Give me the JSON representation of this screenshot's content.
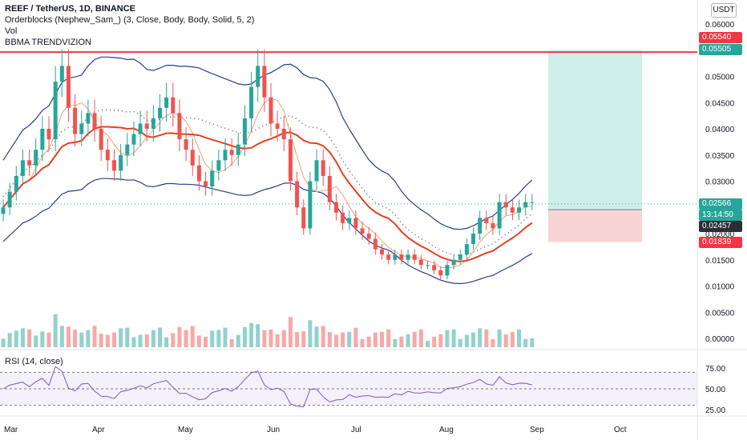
{
  "header": {
    "symbol_line": "REEF / TetherUS, 1D, BINANCE",
    "indicator_orderblocks": "Orderblocks (Nephew_Sam_) (3, Close, Body, Body, Solid, 5, 2)",
    "indicator_vol": "Vol",
    "indicator_bbma": "BBMA TRENDVIZION"
  },
  "unit_label": "USDT",
  "price_tags": {
    "resistance": "0.05540",
    "target": "0.05505",
    "current": "0.02566",
    "countdown": "13:14:50",
    "entry": "0.02457",
    "stop": "0.01839"
  },
  "colors": {
    "up": "#26a69a",
    "down": "#ef5350",
    "ma_red": "#e8401e",
    "bands": "#2a3c8f",
    "rsi_line": "#7e57c2",
    "profit_zone": "#cdeee9",
    "loss_zone": "#f9d4d4",
    "resistance_line": "#f23645"
  },
  "rsi": {
    "label": "RSI (14, close)",
    "ticks": [
      "75.00",
      "50.00",
      "25.00"
    ]
  },
  "chart_data": {
    "type": "candlestick",
    "y_axis_ticks": [
      "0.06000",
      "0.05500",
      "0.05000",
      "0.04500",
      "0.04000",
      "0.03500",
      "0.03000",
      "0.02500",
      "0.02000",
      "0.01500",
      "0.01000",
      "0.00500",
      "0.00000"
    ],
    "ylim": [
      0,
      0.06
    ],
    "x_ticks": [
      "Mar",
      "Apr",
      "May",
      "Jun",
      "Jul",
      "Aug",
      "Sep",
      "Oct"
    ],
    "resistance_level": 0.0554,
    "position": {
      "entry": 0.02457,
      "target": 0.05505,
      "stop": 0.01839
    },
    "close_series": [
      0.025,
      0.028,
      0.031,
      0.034,
      0.033,
      0.036,
      0.04,
      0.038,
      0.049,
      0.052,
      0.044,
      0.039,
      0.041,
      0.043,
      0.04,
      0.036,
      0.034,
      0.032,
      0.035,
      0.037,
      0.039,
      0.041,
      0.04,
      0.042,
      0.044,
      0.046,
      0.043,
      0.038,
      0.036,
      0.033,
      0.03,
      0.029,
      0.032,
      0.034,
      0.036,
      0.035,
      0.037,
      0.042,
      0.048,
      0.052,
      0.046,
      0.041,
      0.04,
      0.038,
      0.03,
      0.025,
      0.021,
      0.03,
      0.034,
      0.031,
      0.026,
      0.024,
      0.022,
      0.023,
      0.021,
      0.02,
      0.019,
      0.017,
      0.016,
      0.015,
      0.016,
      0.015,
      0.016,
      0.015,
      0.014,
      0.014,
      0.013,
      0.012,
      0.014,
      0.015,
      0.016,
      0.018,
      0.02,
      0.023,
      0.022,
      0.021,
      0.026,
      0.025,
      0.024,
      0.025,
      0.026,
      0.026
    ]
  }
}
